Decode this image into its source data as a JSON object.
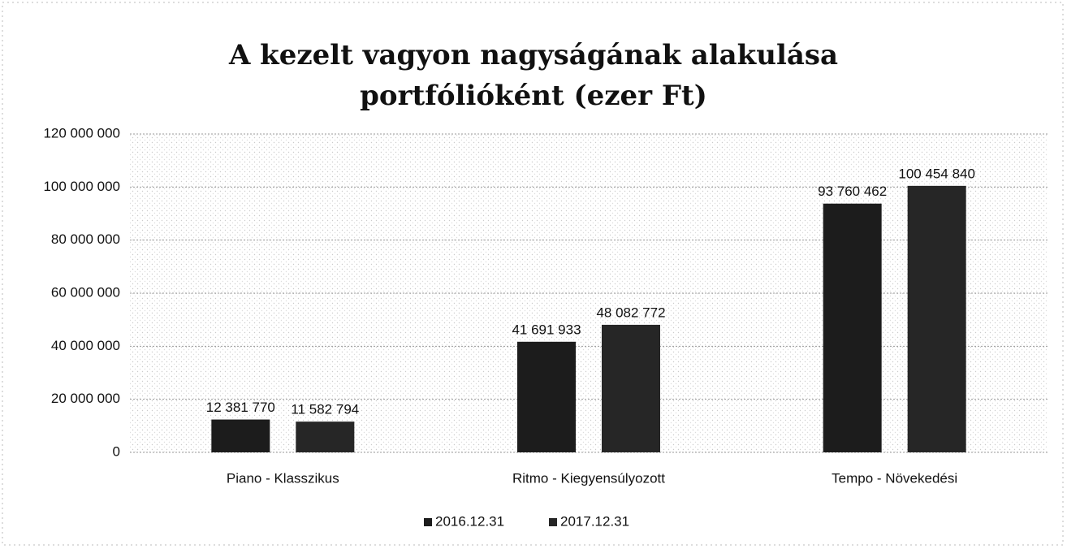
{
  "chart_data": {
    "type": "bar",
    "title": [
      "A kezelt vagyon nagyságának alakulása",
      "portfólióként (ezer Ft)"
    ],
    "categories": [
      "Piano - Klasszikus",
      "Ritmo - Kiegyensúlyozott",
      "Tempo - Növekedési"
    ],
    "series": [
      {
        "name": "2016.12.31",
        "color": "#1c1c1c",
        "values": [
          12381770,
          41691933,
          93760462
        ],
        "value_labels": [
          "12 381 770",
          "41 691 933",
          "93 760 462"
        ]
      },
      {
        "name": "2017.12.31",
        "color": "#262626",
        "values": [
          11582794,
          48082772,
          100454840
        ],
        "value_labels": [
          "11 582 794",
          "48 082 772",
          "100 454 840"
        ]
      }
    ],
    "ylim": [
      0,
      120000000
    ],
    "yticks": [
      0,
      {
        "value": 20000000,
        "label": "20 000 000"
      },
      {
        "value": 40000000,
        "label": "40 000 000"
      },
      {
        "value": 60000000,
        "label": "60 000 000"
      },
      {
        "value": 80000000,
        "label": "80 000 000"
      },
      {
        "value": 100000000,
        "label": "100 000 000"
      },
      {
        "value": 120000000,
        "label": "120 000 000"
      }
    ],
    "grid": true,
    "legend": "bottom"
  }
}
